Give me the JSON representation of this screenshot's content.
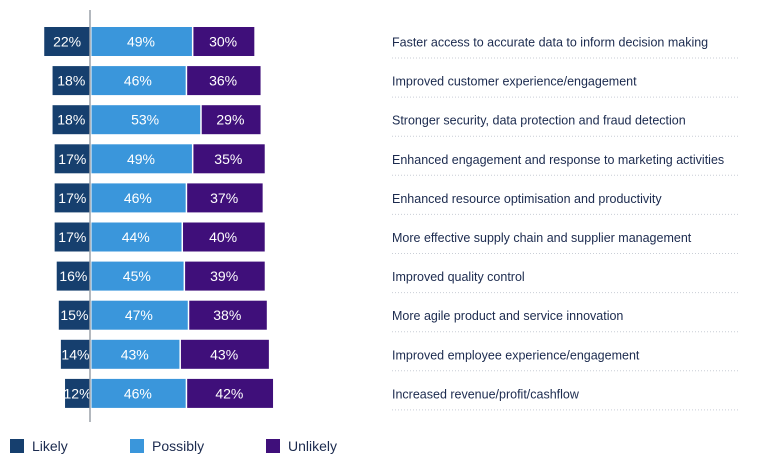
{
  "chart_data": {
    "type": "bar",
    "orientation": "horizontal-diverging-stacked",
    "categories": [
      "Faster access to accurate data to inform decision making",
      "Improved customer experience/engagement",
      "Stronger security, data protection and fraud detection",
      "Enhanced engagement and response to marketing activities",
      "Enhanced resource optimisation and productivity",
      "More effective supply chain and supplier management",
      "Improved quality control",
      "More agile product and service innovation",
      "Improved employee experience/engagement",
      "Increased revenue/profit/cashflow"
    ],
    "series": [
      {
        "name": "Likely",
        "color": "#163f6e",
        "values": [
          22,
          18,
          18,
          17,
          17,
          17,
          16,
          15,
          14,
          12
        ]
      },
      {
        "name": "Possibly",
        "color": "#3a96db",
        "values": [
          49,
          46,
          53,
          49,
          46,
          44,
          45,
          47,
          43,
          46
        ]
      },
      {
        "name": "Unlikely",
        "color": "#3f0f7a",
        "values": [
          30,
          36,
          29,
          35,
          37,
          40,
          39,
          38,
          43,
          42
        ]
      }
    ],
    "value_suffix": "%",
    "legend_position": "bottom-left",
    "baseline_color": "#9aa0a8",
    "label_color": "#1b2a4e"
  }
}
